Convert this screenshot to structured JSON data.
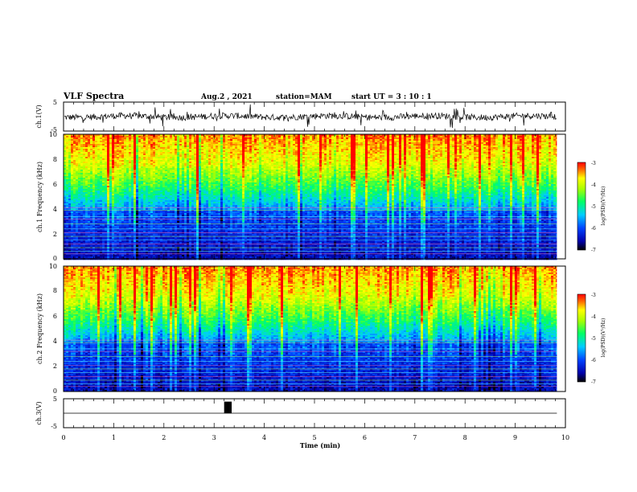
{
  "header": {
    "title": "VLF Spectra",
    "date": "Aug.2 , 2021",
    "station": "station=MAM",
    "start": "start UT = 3 : 10 : 1"
  },
  "chart_data": [
    {
      "type": "line",
      "panel": "ch1-waveform",
      "ylabel": "ch.1(V)",
      "ylim": [
        -5,
        5
      ],
      "ytick_labels": [
        "5",
        "-5"
      ],
      "xlim": [
        0,
        10
      ],
      "x_data_max": 9.83,
      "series": [
        {
          "description_free": true,
          "values": [
            -1.5,
            1.2,
            -0.4,
            0.8,
            -1.0,
            0.3,
            -0.6,
            1.0,
            -0.2,
            0.5
          ]
        }
      ]
    },
    {
      "type": "heatmap",
      "panel": "ch1-spectrogram",
      "ylabel": "ch.1 Frequency (kHz)",
      "ylim": [
        0,
        10
      ],
      "ytick_labels": [
        "0",
        "2",
        "4",
        "6",
        "8",
        "10"
      ],
      "xlim": [
        0,
        10
      ],
      "x_data_max": 9.83,
      "colorbar": {
        "label": "log(PSD)(V²/Hz)",
        "range": [
          -7,
          -3
        ],
        "tick_labels": [
          "-3",
          "-4",
          "-5",
          "-6",
          "-7"
        ]
      }
    },
    {
      "type": "heatmap",
      "panel": "ch2-spectrogram",
      "ylabel": "ch.2 Frequency (kHz)",
      "ylim": [
        0,
        10
      ],
      "ytick_labels": [
        "0",
        "2",
        "4",
        "6",
        "8",
        "10"
      ],
      "xlim": [
        0,
        10
      ],
      "x_data_max": 9.83,
      "colorbar": {
        "label": "log(PSD)(V²/Hz)",
        "range": [
          -7,
          -3
        ],
        "tick_labels": [
          "-3",
          "-4",
          "-5",
          "-6",
          "-7"
        ]
      }
    },
    {
      "type": "line",
      "panel": "ch3-waveform",
      "ylabel": "ch.3(V)",
      "ylim": [
        -5,
        5
      ],
      "ytick_labels": [
        "5",
        "-5"
      ],
      "xlim": [
        0,
        10
      ],
      "xlabel": "Time (min)",
      "xtick_labels": [
        "0",
        "1",
        "2",
        "3",
        "4",
        "5",
        "6",
        "7",
        "8",
        "9",
        "10"
      ],
      "baseline": 0,
      "pulse": {
        "x_start": 3.2,
        "x_end": 3.35,
        "y_low": 0,
        "y_high": 4
      }
    }
  ]
}
